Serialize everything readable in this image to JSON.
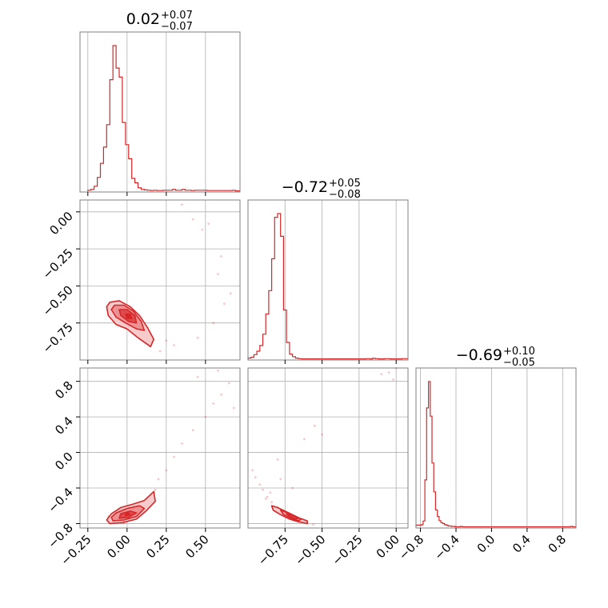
{
  "colors": {
    "accent": "#d62728",
    "fill_outer": "#f7cbcc",
    "fill_mid": "#ec9294",
    "fill_inner": "#de4a4d",
    "grid": "#b0b0b0",
    "frame": "#808080"
  },
  "chart_data": {
    "type": "corner",
    "parameters": [
      {
        "median": "0.02",
        "plus": "+0.07",
        "minus": "−0.07",
        "range": [
          -0.3,
          0.72
        ],
        "ticks": [
          -0.25,
          0.0,
          0.25,
          0.5
        ],
        "tick_labels": [
          "−0.25",
          "0.00",
          "0.25",
          "0.50"
        ],
        "histogram": {
          "bin_start": -0.25,
          "bin_width": 0.02,
          "heights": [
            0.3,
            0.6,
            1.6,
            4.4,
            8.9,
            14.1,
            21.3,
            35.7,
            46.6,
            39.4,
            36.5,
            22.0,
            14.9,
            10.4,
            4.1,
            2.7,
            1.1,
            0.6,
            0.4,
            0.3,
            0.2,
            0.3,
            0.2,
            0.2,
            0.3,
            0.3,
            0.3,
            0.6,
            0.3,
            0.3,
            0.6,
            0.3,
            0.3,
            0.2,
            0.3,
            0.3,
            0.3,
            0.3,
            0.2,
            0.2,
            0.2,
            0.2,
            0.2,
            0.2,
            0.2,
            0.2,
            0.3,
            0.1,
            0.1
          ]
        }
      },
      {
        "median": "−0.72",
        "plus": "+0.05",
        "minus": "−0.08",
        "range": [
          -1.0,
          0.08
        ],
        "ticks": [
          -0.75,
          -0.5,
          -0.25,
          0.0
        ],
        "tick_labels": [
          "−0.75",
          "−0.50",
          "−0.25",
          "0.00"
        ],
        "histogram": {
          "bin_start": -1.0,
          "bin_width": 0.02,
          "heights": [
            0.4,
            0.7,
            1.6,
            2.8,
            4.8,
            8.8,
            15.9,
            24.1,
            35.3,
            49.9,
            51.2,
            43.2,
            17.3,
            5.9,
            1.8,
            0.9,
            0.4,
            0.2,
            0.1,
            0.1,
            0.1,
            0.1,
            0.1,
            0.1,
            0.1,
            0.1,
            0.1,
            0.1,
            0.1,
            0.1,
            0.1,
            0.1,
            0.1,
            0.1,
            0.1,
            0.1,
            0.1,
            0.1,
            0.1,
            0.1,
            0.2,
            0.1,
            0.3,
            0.2,
            0.1,
            0.1,
            0.2,
            0.2,
            0.1,
            0.1,
            0.1,
            0.1,
            0.2,
            0.2
          ]
        }
      },
      {
        "median": "−0.69",
        "plus": "+0.10",
        "minus": "−0.05",
        "range": [
          -0.85,
          0.95
        ],
        "ticks": [
          -0.8,
          -0.4,
          0.0,
          0.4,
          0.8
        ],
        "tick_labels": [
          "−0.8",
          "−0.4",
          "0.0",
          "0.4",
          "0.8"
        ],
        "histogram": {
          "bin_start": -0.85,
          "bin_width": 0.02,
          "heights": [
            0.5,
            0.5,
            0.5,
            0.6,
            1.5,
            11.5,
            29.0,
            35.4,
            27.0,
            15.6,
            8.6,
            4.2,
            2.6,
            1.6,
            1.1,
            0.9,
            0.6,
            0.5,
            0.3,
            0.3,
            0.2,
            0.2,
            0.1,
            0.1,
            0.1,
            0.2,
            0.1,
            0.1,
            0.1,
            0.1,
            0.1,
            0.1,
            0.1,
            0.1,
            0.1,
            0.1,
            0.1,
            0.1,
            0.1,
            0.1,
            0.1,
            0.1,
            0.1,
            0.1,
            0.1,
            0.1,
            0.1,
            0.1,
            0.1,
            0.1,
            0.1,
            0.1,
            0.1,
            0.1,
            0.1,
            0.1,
            0.1,
            0.1,
            0.1,
            0.1,
            0.1,
            0.1,
            0.1,
            0.1,
            0.1,
            0.1,
            0.1,
            0.1,
            0.1,
            0.1,
            0.1,
            0.1,
            0.1,
            0.1,
            0.1,
            0.1,
            0.1,
            0.1,
            0.1,
            0.1,
            0.1,
            0.1,
            0.1,
            0.1,
            0.1,
            0.1,
            0.1,
            0.2,
            0.1,
            0.1
          ]
        }
      }
    ],
    "pair_panels": [
      {
        "x_param": 0,
        "y_param": 1,
        "samples": [
          [
            -0.05,
            -0.68
          ],
          [
            0.04,
            -0.73
          ],
          [
            -0.12,
            -0.66
          ],
          [
            0.09,
            -0.8
          ],
          [
            0.02,
            -0.71
          ],
          [
            -0.08,
            -0.62
          ],
          [
            0.14,
            -0.86
          ],
          [
            0.0,
            -0.69
          ],
          [
            -0.03,
            -0.75
          ],
          [
            0.06,
            -0.78
          ],
          [
            -0.1,
            -0.7
          ],
          [
            0.11,
            -0.83
          ],
          [
            0.3,
            -0.9
          ],
          [
            0.45,
            -0.85
          ],
          [
            0.55,
            -0.75
          ],
          [
            0.62,
            -0.62
          ],
          [
            0.42,
            -0.05
          ],
          [
            0.48,
            -0.12
          ],
          [
            0.52,
            -0.08
          ],
          [
            0.35,
            0.05
          ],
          [
            0.6,
            -0.3
          ],
          [
            0.66,
            -0.55
          ],
          [
            0.58,
            -0.42
          ],
          [
            0.21,
            -0.94
          ],
          [
            0.25,
            -0.87
          ]
        ],
        "contours": [
          [
            [
              -0.11,
              -0.61
            ],
            [
              -0.05,
              -0.6
            ],
            [
              0.02,
              -0.64
            ],
            [
              0.08,
              -0.7
            ],
            [
              0.13,
              -0.78
            ],
            [
              0.17,
              -0.86
            ],
            [
              0.15,
              -0.91
            ],
            [
              0.07,
              -0.85
            ],
            [
              0.0,
              -0.79
            ],
            [
              -0.07,
              -0.76
            ],
            [
              -0.12,
              -0.7
            ],
            [
              -0.13,
              -0.64
            ]
          ],
          [
            [
              -0.08,
              -0.63
            ],
            [
              -0.02,
              -0.63
            ],
            [
              0.04,
              -0.67
            ],
            [
              0.09,
              -0.74
            ],
            [
              0.11,
              -0.8
            ],
            [
              0.06,
              -0.79
            ],
            [
              -0.01,
              -0.75
            ],
            [
              -0.07,
              -0.71
            ],
            [
              -0.1,
              -0.66
            ]
          ],
          [
            [
              -0.05,
              -0.66
            ],
            [
              0.0,
              -0.66
            ],
            [
              0.05,
              -0.7
            ],
            [
              0.06,
              -0.75
            ],
            [
              0.01,
              -0.74
            ],
            [
              -0.04,
              -0.7
            ]
          ],
          [
            [
              -0.01,
              -0.69
            ],
            [
              0.02,
              -0.69
            ],
            [
              0.03,
              -0.72
            ],
            [
              0.0,
              -0.72
            ]
          ]
        ]
      },
      {
        "x_param": 0,
        "y_param": 2,
        "samples": [
          [
            -0.05,
            -0.74
          ],
          [
            0.03,
            -0.7
          ],
          [
            -0.12,
            -0.72
          ],
          [
            0.09,
            -0.6
          ],
          [
            0.15,
            -0.5
          ],
          [
            -0.08,
            -0.76
          ],
          [
            0.18,
            -0.42
          ],
          [
            0.0,
            -0.68
          ],
          [
            0.06,
            -0.66
          ],
          [
            -0.1,
            -0.7
          ],
          [
            0.12,
            -0.55
          ],
          [
            0.25,
            -0.2
          ],
          [
            0.35,
            0.1
          ],
          [
            0.42,
            0.25
          ],
          [
            0.5,
            0.4
          ],
          [
            0.55,
            0.55
          ],
          [
            0.6,
            0.65
          ],
          [
            0.65,
            0.78
          ],
          [
            0.45,
            0.85
          ],
          [
            0.58,
            0.92
          ],
          [
            0.68,
            0.5
          ],
          [
            0.3,
            -0.05
          ],
          [
            0.2,
            -0.3
          ],
          [
            -0.02,
            -0.8
          ],
          [
            0.1,
            -0.64
          ]
        ],
        "contours": [
          [
            [
              -0.11,
              -0.8
            ],
            [
              -0.03,
              -0.79
            ],
            [
              0.06,
              -0.75
            ],
            [
              0.12,
              -0.66
            ],
            [
              0.18,
              -0.55
            ],
            [
              0.17,
              -0.44
            ],
            [
              0.11,
              -0.54
            ],
            [
              0.04,
              -0.58
            ],
            [
              -0.04,
              -0.62
            ],
            [
              -0.1,
              -0.69
            ],
            [
              -0.13,
              -0.76
            ]
          ],
          [
            [
              -0.09,
              -0.77
            ],
            [
              -0.02,
              -0.76
            ],
            [
              0.06,
              -0.72
            ],
            [
              0.11,
              -0.63
            ],
            [
              0.08,
              -0.6
            ],
            [
              0.0,
              -0.63
            ],
            [
              -0.07,
              -0.68
            ],
            [
              -0.1,
              -0.73
            ]
          ],
          [
            [
              -0.05,
              -0.74
            ],
            [
              0.01,
              -0.73
            ],
            [
              0.06,
              -0.68
            ],
            [
              0.02,
              -0.66
            ],
            [
              -0.04,
              -0.69
            ]
          ],
          [
            [
              -0.01,
              -0.71
            ],
            [
              0.02,
              -0.7
            ],
            [
              0.01,
              -0.68
            ],
            [
              -0.01,
              -0.69
            ]
          ]
        ]
      },
      {
        "x_param": 1,
        "y_param": 2,
        "samples": [
          [
            -0.97,
            -0.2
          ],
          [
            -0.95,
            -0.28
          ],
          [
            -0.92,
            -0.36
          ],
          [
            -0.9,
            -0.42
          ],
          [
            -0.87,
            -0.5
          ],
          [
            -0.84,
            -0.56
          ],
          [
            -0.8,
            -0.62
          ],
          [
            -0.76,
            -0.67
          ],
          [
            -0.72,
            -0.71
          ],
          [
            -0.68,
            -0.74
          ],
          [
            -0.64,
            -0.77
          ],
          [
            -0.6,
            -0.79
          ],
          [
            -0.56,
            -0.81
          ],
          [
            -0.78,
            -0.3
          ],
          [
            -0.8,
            -0.08
          ],
          [
            -0.7,
            -0.4
          ],
          [
            -0.5,
            0.2
          ],
          [
            -0.62,
            0.15
          ],
          [
            -0.55,
            0.3
          ],
          [
            -0.05,
            0.9
          ],
          [
            -0.02,
            0.82
          ],
          [
            0.0,
            0.95
          ],
          [
            -0.1,
            0.88
          ],
          [
            -0.85,
            -0.45
          ],
          [
            -0.88,
            -0.52
          ]
        ],
        "contours": [
          [
            [
              -0.84,
              -0.6
            ],
            [
              -0.8,
              -0.62
            ],
            [
              -0.75,
              -0.66
            ],
            [
              -0.7,
              -0.7
            ],
            [
              -0.65,
              -0.74
            ],
            [
              -0.6,
              -0.77
            ],
            [
              -0.6,
              -0.8
            ],
            [
              -0.66,
              -0.78
            ],
            [
              -0.72,
              -0.75
            ],
            [
              -0.78,
              -0.7
            ],
            [
              -0.83,
              -0.65
            ]
          ],
          [
            [
              -0.78,
              -0.65
            ],
            [
              -0.73,
              -0.68
            ],
            [
              -0.68,
              -0.72
            ],
            [
              -0.64,
              -0.75
            ],
            [
              -0.66,
              -0.77
            ],
            [
              -0.71,
              -0.74
            ],
            [
              -0.76,
              -0.7
            ]
          ],
          [
            [
              -0.74,
              -0.69
            ],
            [
              -0.7,
              -0.71
            ],
            [
              -0.66,
              -0.74
            ],
            [
              -0.68,
              -0.75
            ],
            [
              -0.72,
              -0.72
            ]
          ]
        ]
      }
    ]
  }
}
